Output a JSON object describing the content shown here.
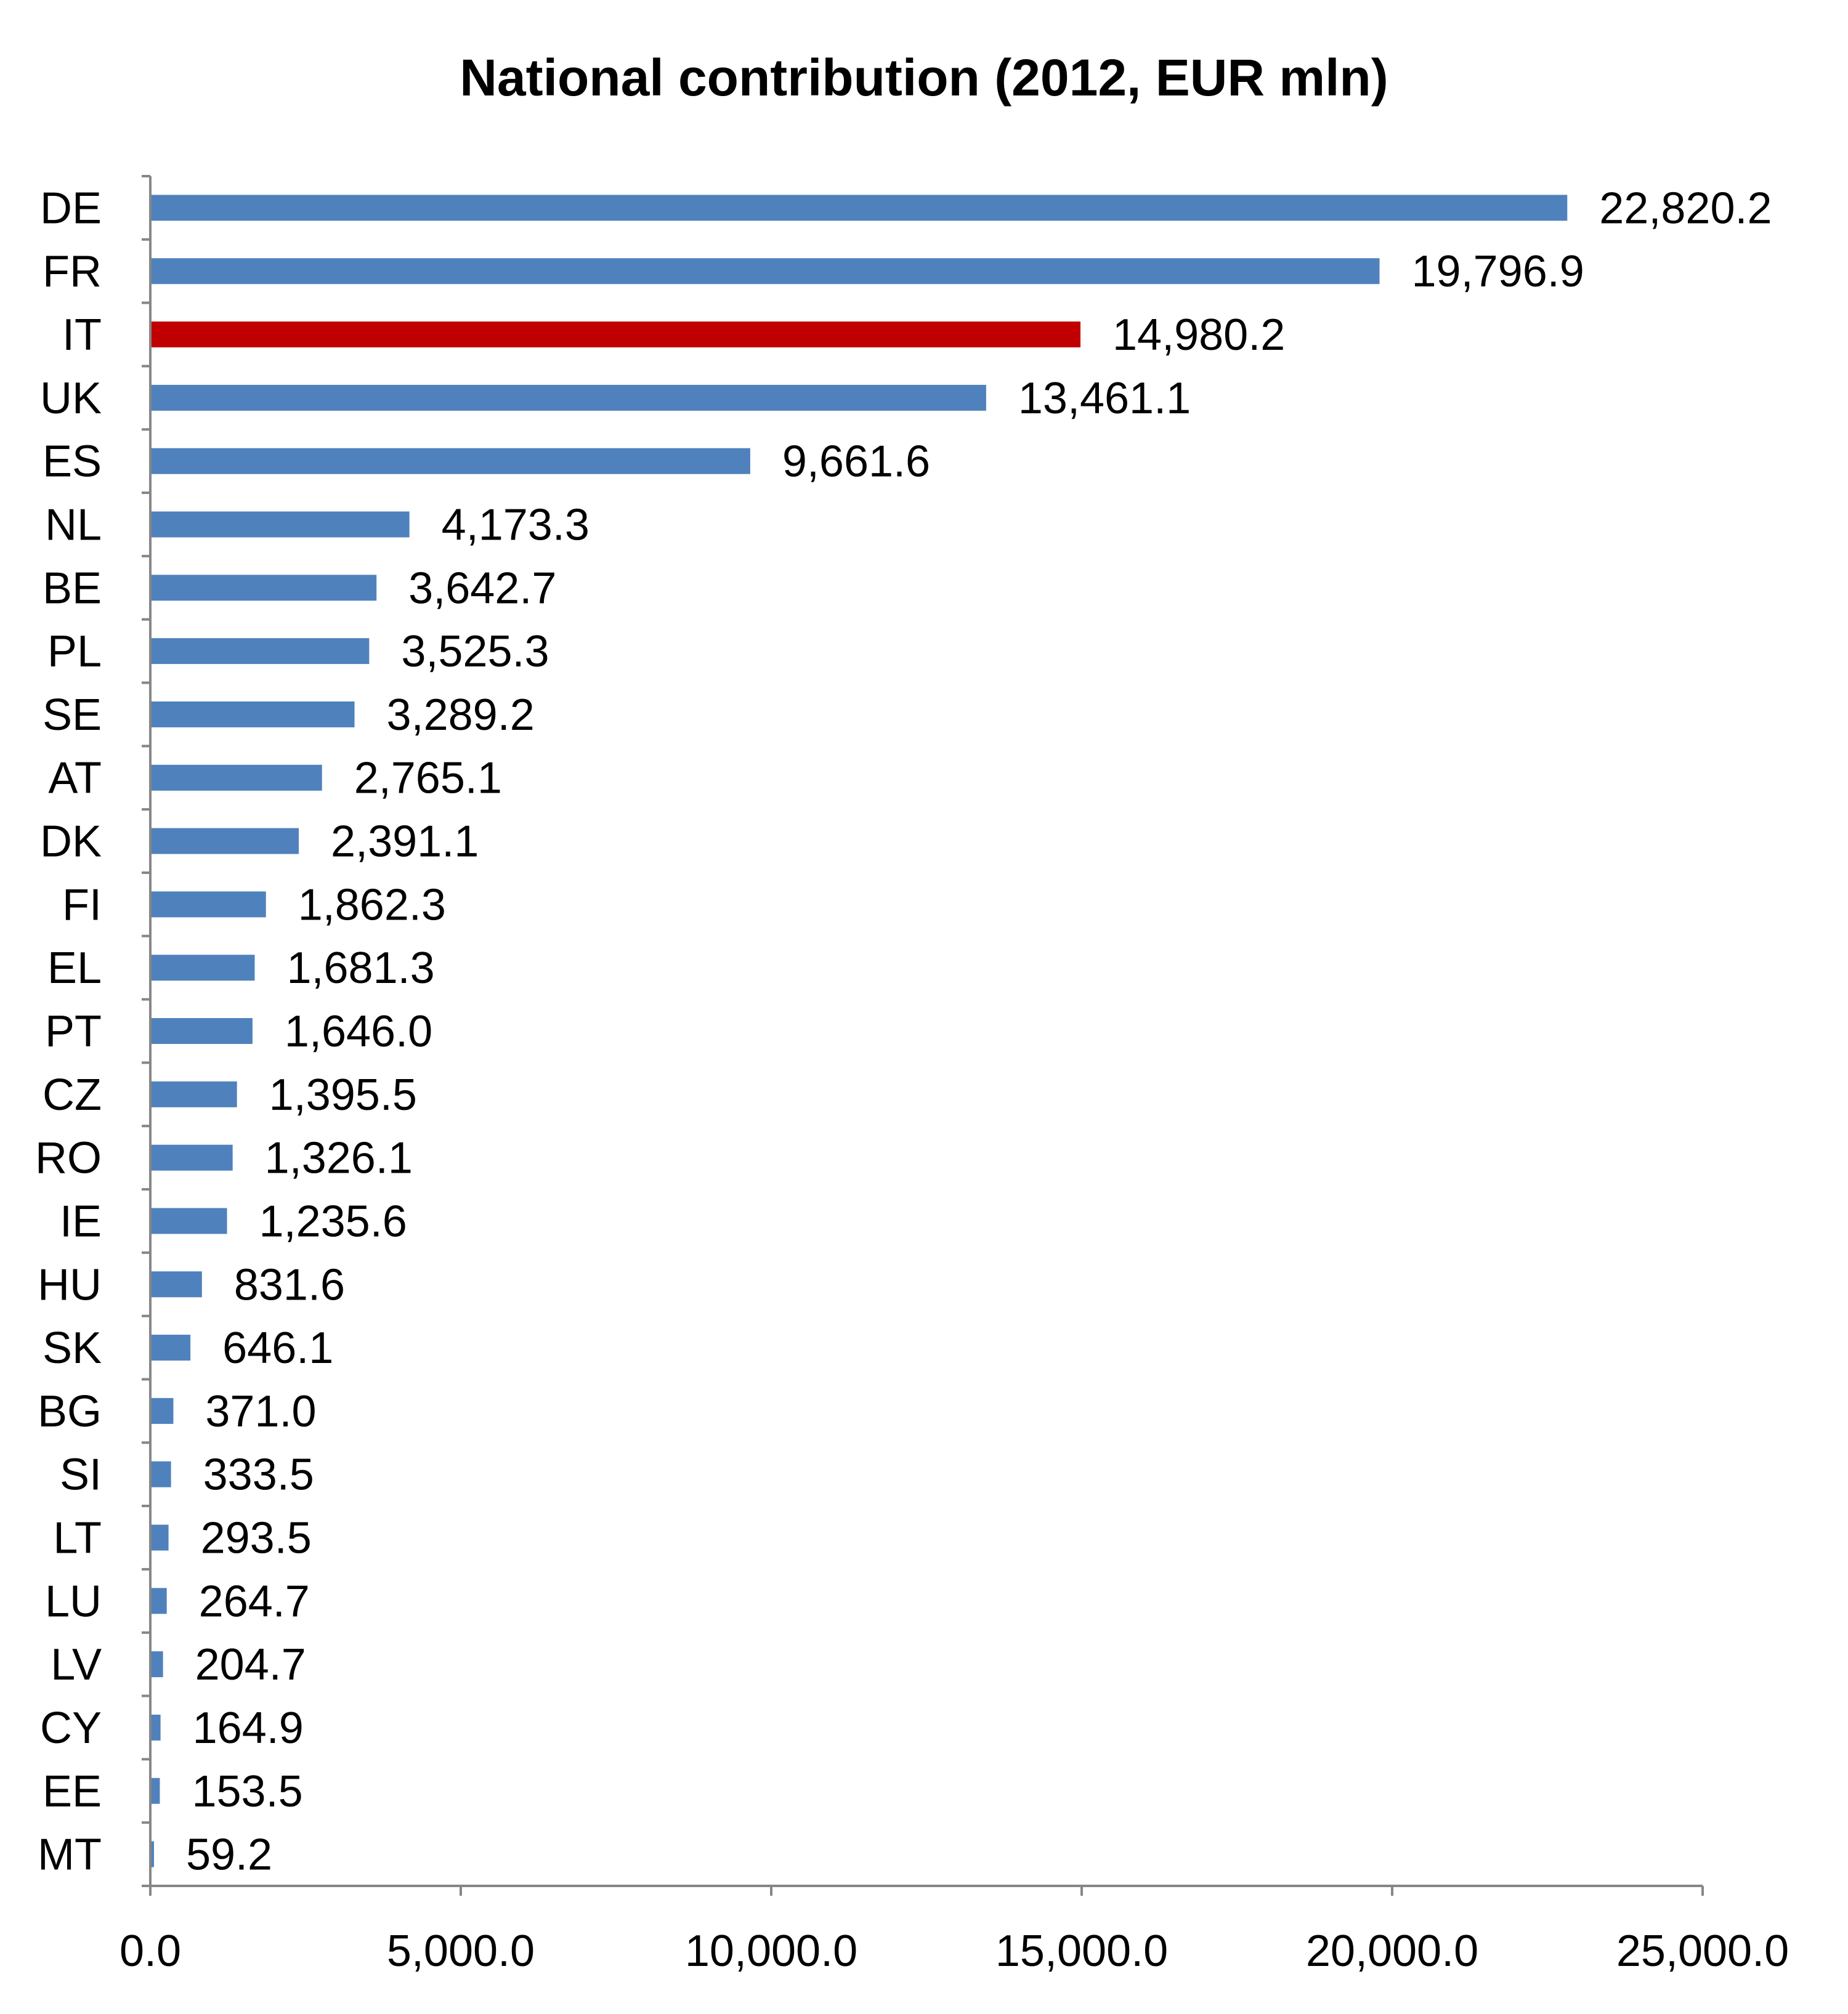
{
  "chart_data": {
    "type": "bar",
    "orientation": "horizontal",
    "title": "National contribution (2012, EUR mln)",
    "xlabel": "",
    "ylabel": "",
    "xlim": [
      0,
      25000
    ],
    "x_ticks": [
      "0.0",
      "5,000.0",
      "10,000.0",
      "15,000.0",
      "20,000.0",
      "25,000.0"
    ],
    "x_tick_values": [
      0,
      5000,
      10000,
      15000,
      20000,
      25000
    ],
    "grid": false,
    "legend": "none",
    "colors": {
      "default": "#4F81BD",
      "highlight": "#C00000"
    },
    "highlight_category": "IT",
    "categories": [
      "DE",
      "FR",
      "IT",
      "UK",
      "ES",
      "NL",
      "BE",
      "PL",
      "SE",
      "AT",
      "DK",
      "FI",
      "EL",
      "PT",
      "CZ",
      "RO",
      "IE",
      "HU",
      "SK",
      "BG",
      "SI",
      "LT",
      "LU",
      "LV",
      "CY",
      "EE",
      "MT"
    ],
    "values": [
      22820.2,
      19796.9,
      14980.2,
      13461.1,
      9661.6,
      4173.3,
      3642.7,
      3525.3,
      3289.2,
      2765.1,
      2391.1,
      1862.3,
      1681.3,
      1646.0,
      1395.5,
      1326.1,
      1235.6,
      831.6,
      646.1,
      371.0,
      333.5,
      293.5,
      264.7,
      204.7,
      164.9,
      153.5,
      59.2
    ],
    "value_labels": [
      "22,820.2",
      "19,796.9",
      "14,980.2",
      "13,461.1",
      "9,661.6",
      "4,173.3",
      "3,642.7",
      "3,525.3",
      "3,289.2",
      "2,765.1",
      "2,391.1",
      "1,862.3",
      "1,681.3",
      "1,646.0",
      "1,395.5",
      "1,326.1",
      "1,235.6",
      "831.6",
      "646.1",
      "371.0",
      "333.5",
      "293.5",
      "264.7",
      "204.7",
      "164.9",
      "153.5",
      "59.2"
    ]
  }
}
